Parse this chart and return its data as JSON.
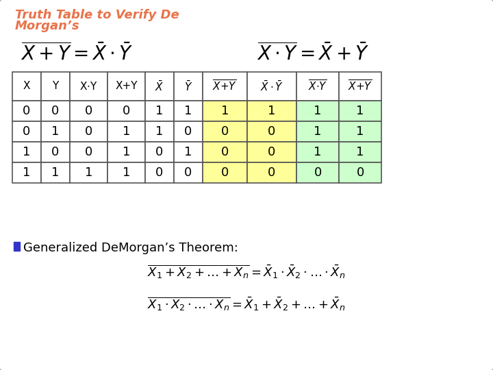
{
  "title_color": "#E8734A",
  "bg_color": "#FFFFFF",
  "rows": [
    [
      0,
      0,
      0,
      0,
      1,
      1,
      1,
      1,
      1,
      1
    ],
    [
      0,
      1,
      0,
      1,
      1,
      0,
      0,
      0,
      1,
      1
    ],
    [
      1,
      0,
      0,
      1,
      0,
      1,
      0,
      0,
      1,
      1
    ],
    [
      1,
      1,
      1,
      1,
      0,
      0,
      0,
      0,
      0,
      0
    ]
  ],
  "yellow_cols": [
    6,
    7
  ],
  "green_cols": [
    8,
    9
  ],
  "yellow_color": "#FFFF99",
  "green_color": "#CCFFCC",
  "bullet_color": "#3333CC"
}
